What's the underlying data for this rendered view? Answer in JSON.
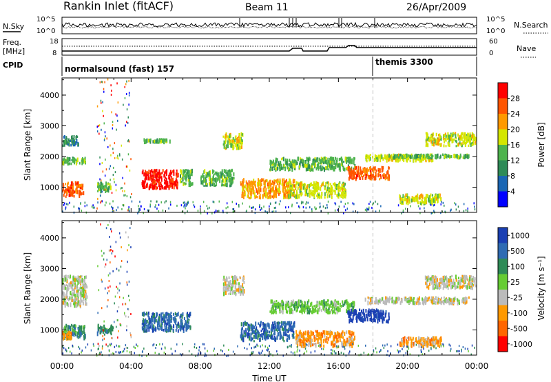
{
  "header": {
    "radar_name": "Rankin Inlet (fitACF)",
    "beam": "Beam 11",
    "date": "26/Apr/2009"
  },
  "info_panels": {
    "nsky_label": "N.Sky",
    "nsearch_label": "N.Search",
    "noise_ticks_left": [
      "10^5",
      "10^0"
    ],
    "noise_ticks_right": [
      "10^5",
      "10^0"
    ],
    "freq_label_1": "Freq.",
    "freq_label_2": "[MHz]",
    "freq_ticks": [
      "18",
      "8"
    ],
    "nave_label": "Nave",
    "nave_ticks": [
      "60",
      "0"
    ],
    "cpid_label": "CPID",
    "cpid_segments": [
      {
        "label": "normalsound (fast) 157",
        "start_hour": 0
      },
      {
        "label": "themis 3300",
        "start_hour": 18
      }
    ]
  },
  "chart_data": [
    {
      "type": "heatmap",
      "panel": "power",
      "ylabel": "Slant Range [km]",
      "yticks": [
        "1000",
        "2000",
        "3000",
        "4000"
      ],
      "xlim": [
        0,
        24
      ],
      "ylim": [
        180,
        4560
      ],
      "colorbar": {
        "label": "Power [dB]",
        "ticks": [
          "4",
          "8",
          "12",
          "16",
          "20",
          "24",
          "28"
        ],
        "colors": [
          "#0000ff",
          "#1a66b4",
          "#2e8b57",
          "#4db34d",
          "#d4e600",
          "#ff9900",
          "#ff5500",
          "#ff0000"
        ]
      },
      "regions": [
        {
          "x0": 0.0,
          "x1": 1.3,
          "y0": 650,
          "y1": 1200,
          "level": 6
        },
        {
          "x0": 0.0,
          "x1": 1.5,
          "y0": 1700,
          "y1": 2000,
          "level": 3
        },
        {
          "x0": 0.0,
          "x1": 1.0,
          "y0": 2300,
          "y1": 2700,
          "level": 2
        },
        {
          "x0": 2.0,
          "x1": 2.9,
          "y0": 800,
          "y1": 1200,
          "level": 3
        },
        {
          "x0": 4.6,
          "x1": 6.8,
          "y0": 900,
          "y1": 1600,
          "level": 7
        },
        {
          "x0": 6.8,
          "x1": 7.6,
          "y0": 1000,
          "y1": 1600,
          "level": 3
        },
        {
          "x0": 4.7,
          "x1": 6.3,
          "y0": 2400,
          "y1": 2600,
          "level": 3
        },
        {
          "x0": 9.3,
          "x1": 10.5,
          "y0": 2200,
          "y1": 2800,
          "level": 4
        },
        {
          "x0": 8.0,
          "x1": 10.0,
          "y0": 1000,
          "y1": 1600,
          "level": 3
        },
        {
          "x0": 10.3,
          "x1": 13.5,
          "y0": 600,
          "y1": 1300,
          "level": 5
        },
        {
          "x0": 12.0,
          "x1": 17.0,
          "y0": 1500,
          "y1": 2000,
          "level": 3
        },
        {
          "x0": 13.0,
          "x1": 16.5,
          "y0": 600,
          "y1": 1200,
          "level": 4
        },
        {
          "x0": 16.5,
          "x1": 19.0,
          "y0": 1200,
          "y1": 1700,
          "level": 6
        },
        {
          "x0": 17.5,
          "x1": 21.5,
          "y0": 1800,
          "y1": 2100,
          "level": 4
        },
        {
          "x0": 19.0,
          "x1": 23.6,
          "y0": 1900,
          "y1": 2100,
          "level": 3
        },
        {
          "x0": 21.0,
          "x1": 24.0,
          "y0": 2300,
          "y1": 2800,
          "level": 4
        },
        {
          "x0": 19.5,
          "x1": 22.0,
          "y0": 400,
          "y1": 800,
          "level": 4
        }
      ]
    },
    {
      "type": "heatmap",
      "panel": "velocity",
      "xlabel": "Time UT",
      "ylabel": "Slant Range [km]",
      "xticks": [
        "00:00",
        "04:00",
        "08:00",
        "12:00",
        "16:00",
        "20:00",
        "00:00"
      ],
      "yticks": [
        "1000",
        "2000",
        "3000",
        "4000"
      ],
      "xlim": [
        0,
        24
      ],
      "ylim": [
        180,
        4560
      ],
      "colorbar": {
        "label": "Velocity [m s⁻¹]",
        "ticks": [
          "1000",
          "500",
          "100",
          "25",
          "-25",
          "-100",
          "-500",
          "-1000"
        ],
        "colors": [
          "#1a3fb3",
          "#2e6bb3",
          "#2e8b57",
          "#66cc33",
          "#bbbbbb",
          "#ff9900",
          "#ff6600",
          "#ff0000"
        ]
      },
      "regions": [
        {
          "x0": 0.0,
          "x1": 1.4,
          "y0": 650,
          "y1": 1200,
          "level": 2
        },
        {
          "x0": 0.0,
          "x1": 0.6,
          "y0": 650,
          "y1": 1000,
          "level": 5
        },
        {
          "x0": 0.0,
          "x1": 1.5,
          "y0": 1700,
          "y1": 2800,
          "level": 4
        },
        {
          "x0": 2.0,
          "x1": 3.0,
          "y0": 800,
          "y1": 1200,
          "level": 2
        },
        {
          "x0": 4.6,
          "x1": 7.5,
          "y0": 900,
          "y1": 1600,
          "level": 1
        },
        {
          "x0": 9.3,
          "x1": 10.6,
          "y0": 2100,
          "y1": 2800,
          "level": 4
        },
        {
          "x0": 10.3,
          "x1": 13.5,
          "y0": 600,
          "y1": 1300,
          "level": 1
        },
        {
          "x0": 12.0,
          "x1": 17.0,
          "y0": 1500,
          "y1": 2000,
          "level": 3
        },
        {
          "x0": 13.5,
          "x1": 17.0,
          "y0": 400,
          "y1": 1000,
          "level": 5
        },
        {
          "x0": 16.5,
          "x1": 19.0,
          "y0": 1200,
          "y1": 1700,
          "level": 0
        },
        {
          "x0": 17.5,
          "x1": 23.6,
          "y0": 1800,
          "y1": 2100,
          "level": 4
        },
        {
          "x0": 21.0,
          "x1": 24.0,
          "y0": 2300,
          "y1": 2800,
          "level": 4
        },
        {
          "x0": 19.5,
          "x1": 22.0,
          "y0": 400,
          "y1": 800,
          "level": 5
        }
      ]
    }
  ]
}
